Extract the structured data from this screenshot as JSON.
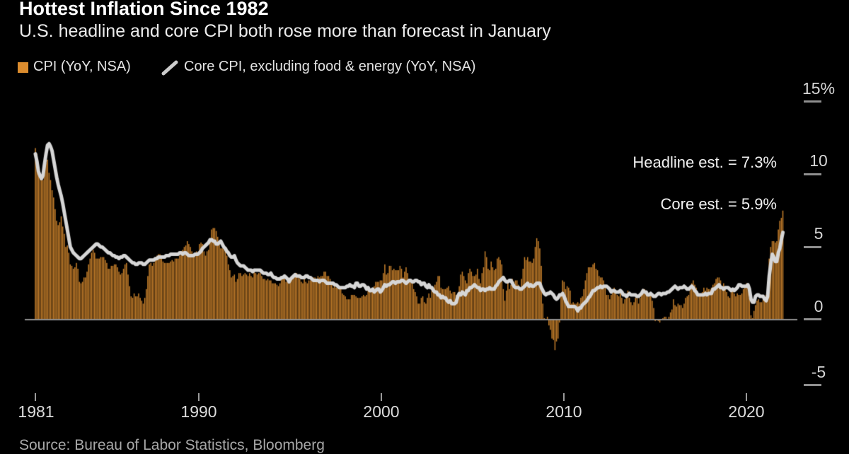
{
  "header": {
    "title": "Hottest Inflation Since 1982",
    "subtitle": "U.S. headline and core CPI both rose more than forecast in January"
  },
  "legend": {
    "cpi_label": "CPI (YoY, NSA)",
    "core_label": "Core CPI, excluding food & energy (YoY, NSA)",
    "cpi_swatch_icon": "orange-square",
    "core_line_icon": "gray-slash"
  },
  "annotations": {
    "headline_estimate": "Headline est. = 7.3%",
    "core_estimate": "Core est. = 5.9%"
  },
  "source_note": "Source: Bureau of Labor Statistics, Bloomberg",
  "colors": {
    "background": "#000000",
    "bar": "#C8802B",
    "legend_swatch": "#DB8C2E",
    "core_line": "#D6D6D6",
    "baseline": "#8F8F8F"
  },
  "chart_data": {
    "type": "bar",
    "subtype": "monthly bars with overlaid line",
    "title": "Hottest Inflation Since 1982",
    "xlabel": "",
    "ylabel": "%",
    "ylim": [
      -5,
      15
    ],
    "x_start": "1981-01",
    "x_end": "2022-01",
    "frequency": "monthly",
    "grid": false,
    "legend_position": "top-left",
    "y_ticks": [
      {
        "label": "15%",
        "value": 15
      },
      {
        "label": "10",
        "value": 10
      },
      {
        "label": "5",
        "value": 5
      },
      {
        "label": "0",
        "value": 0
      },
      {
        "label": "-5",
        "value": -5
      }
    ],
    "x_ticks": [
      {
        "label": "1981",
        "year": 1981
      },
      {
        "label": "1990",
        "year": 1990
      },
      {
        "label": "2000",
        "year": 2000
      },
      {
        "label": "2010",
        "year": 2010
      },
      {
        "label": "2020",
        "year": 2020
      }
    ],
    "series": [
      {
        "name": "CPI (YoY, NSA)",
        "type": "bar",
        "values": [
          11.8,
          11.4,
          10.5,
          10.0,
          9.8,
          9.6,
          10.8,
          10.8,
          11.0,
          10.1,
          9.6,
          8.9,
          8.4,
          7.6,
          6.8,
          6.5,
          6.7,
          7.1,
          6.4,
          5.9,
          5.0,
          5.1,
          4.6,
          3.8,
          3.7,
          3.5,
          3.6,
          3.9,
          3.5,
          2.6,
          2.5,
          2.6,
          2.9,
          2.9,
          3.3,
          3.8,
          4.2,
          4.6,
          4.8,
          4.6,
          4.2,
          4.2,
          4.2,
          4.3,
          4.3,
          4.3,
          4.1,
          3.9,
          3.5,
          3.5,
          3.7,
          3.7,
          3.8,
          3.8,
          3.6,
          3.3,
          3.1,
          3.2,
          3.5,
          3.8,
          3.9,
          3.1,
          2.3,
          1.6,
          1.5,
          1.8,
          1.6,
          1.6,
          1.8,
          1.5,
          1.3,
          1.1,
          1.5,
          2.1,
          3.0,
          3.8,
          3.9,
          3.7,
          3.9,
          4.3,
          4.4,
          4.5,
          4.5,
          4.4,
          4.0,
          3.9,
          3.9,
          3.9,
          3.9,
          4.0,
          4.1,
          4.0,
          4.2,
          4.2,
          4.2,
          4.4,
          4.7,
          4.8,
          5.0,
          5.1,
          5.4,
          5.2,
          5.0,
          4.7,
          4.3,
          4.5,
          4.7,
          4.6,
          5.2,
          5.3,
          5.2,
          4.7,
          4.4,
          4.7,
          4.8,
          5.6,
          6.2,
          6.3,
          6.3,
          6.1,
          5.7,
          5.3,
          4.9,
          4.9,
          5.0,
          4.7,
          4.4,
          3.8,
          3.4,
          2.9,
          3.0,
          3.1,
          2.6,
          2.8,
          3.2,
          3.2,
          3.0,
          3.1,
          3.2,
          3.1,
          3.0,
          3.2,
          3.0,
          2.9,
          3.3,
          3.2,
          3.1,
          3.2,
          3.2,
          3.0,
          2.8,
          2.8,
          2.7,
          2.8,
          2.7,
          2.7,
          2.5,
          2.5,
          2.5,
          2.4,
          2.3,
          2.5,
          2.8,
          2.9,
          3.0,
          2.6,
          2.7,
          2.7,
          2.8,
          2.9,
          2.9,
          3.1,
          3.2,
          3.0,
          2.8,
          2.6,
          2.5,
          2.8,
          2.6,
          2.5,
          2.7,
          2.7,
          2.8,
          2.9,
          2.9,
          2.8,
          3.0,
          2.9,
          3.0,
          3.0,
          3.3,
          3.3,
          3.0,
          3.0,
          2.8,
          2.5,
          2.2,
          2.3,
          2.2,
          2.2,
          2.2,
          2.1,
          1.8,
          1.7,
          1.6,
          1.4,
          1.4,
          1.4,
          1.7,
          1.7,
          1.7,
          1.6,
          1.5,
          1.5,
          1.5,
          1.6,
          1.7,
          1.6,
          1.7,
          2.3,
          2.1,
          2.0,
          2.1,
          2.3,
          2.6,
          2.6,
          2.6,
          2.7,
          2.7,
          3.2,
          3.8,
          3.1,
          3.2,
          3.7,
          3.7,
          3.4,
          3.5,
          3.4,
          3.4,
          3.4,
          3.7,
          3.5,
          2.9,
          3.3,
          3.6,
          3.2,
          2.7,
          2.7,
          2.6,
          2.1,
          1.9,
          1.6,
          1.1,
          1.1,
          1.5,
          1.6,
          1.2,
          1.1,
          1.5,
          1.8,
          1.5,
          2.0,
          2.2,
          2.4,
          2.6,
          3.0,
          3.0,
          2.2,
          2.1,
          2.1,
          2.1,
          2.2,
          2.3,
          2.0,
          1.8,
          1.9,
          1.9,
          1.7,
          1.7,
          2.3,
          3.1,
          3.3,
          3.0,
          2.7,
          2.5,
          3.2,
          3.5,
          3.3,
          3.0,
          3.0,
          3.1,
          3.5,
          2.8,
          2.5,
          3.2,
          3.6,
          4.7,
          4.3,
          3.5,
          3.4,
          4.0,
          3.6,
          3.4,
          3.5,
          4.2,
          4.3,
          4.1,
          3.8,
          2.1,
          1.3,
          2.0,
          2.5,
          2.1,
          2.4,
          2.8,
          2.6,
          2.7,
          2.7,
          2.4,
          2.0,
          2.8,
          3.5,
          4.3,
          4.1,
          4.3,
          4.0,
          4.0,
          3.9,
          4.2,
          5.0,
          5.6,
          5.4,
          4.9,
          3.7,
          1.1,
          0.1,
          0.0,
          0.2,
          -0.4,
          -0.7,
          -1.3,
          -1.4,
          -2.1,
          -1.5,
          -1.3,
          -0.2,
          1.8,
          2.7,
          2.6,
          2.1,
          2.3,
          2.2,
          2.0,
          1.1,
          1.2,
          1.1,
          1.1,
          1.2,
          1.1,
          1.5,
          1.6,
          2.1,
          2.7,
          3.2,
          3.6,
          3.6,
          3.6,
          3.8,
          3.9,
          3.5,
          3.4,
          3.0,
          2.9,
          2.9,
          2.7,
          2.3,
          1.7,
          1.7,
          1.4,
          1.7,
          2.0,
          2.2,
          1.8,
          1.7,
          1.6,
          2.0,
          1.5,
          1.1,
          1.4,
          1.8,
          2.0,
          1.5,
          1.2,
          1.0,
          1.2,
          1.5,
          1.6,
          1.1,
          1.5,
          2.0,
          2.1,
          2.1,
          2.0,
          1.7,
          1.7,
          1.7,
          1.3,
          0.8,
          -0.1,
          0.0,
          -0.1,
          -0.2,
          0.0,
          0.1,
          0.2,
          0.2,
          0.0,
          0.2,
          0.5,
          0.7,
          1.4,
          1.0,
          0.9,
          1.1,
          1.0,
          1.0,
          0.8,
          1.1,
          1.5,
          1.6,
          1.7,
          2.1,
          2.5,
          2.7,
          2.4,
          2.2,
          1.9,
          1.6,
          1.7,
          1.9,
          2.2,
          2.0,
          2.2,
          2.1,
          2.1,
          2.2,
          2.4,
          2.5,
          2.8,
          2.9,
          2.9,
          2.7,
          2.3,
          2.5,
          2.2,
          1.9,
          1.6,
          1.5,
          1.9,
          2.0,
          1.8,
          1.6,
          1.8,
          1.7,
          1.7,
          1.8,
          2.1,
          2.3,
          2.5,
          2.3,
          1.5,
          0.3,
          0.1,
          0.6,
          1.0,
          1.3,
          1.4,
          1.2,
          1.2,
          1.4,
          1.4,
          1.7,
          2.6,
          4.2,
          5.0,
          5.4,
          5.4,
          5.3,
          5.4,
          6.2,
          6.8,
          7.0,
          7.5
        ]
      },
      {
        "name": "Core CPI, excluding food & energy (YoY, NSA)",
        "type": "line",
        "values": [
          11.4,
          10.9,
          10.2,
          9.9,
          9.7,
          9.9,
          10.7,
          11.4,
          12.0,
          12.1,
          11.9,
          11.6,
          11.0,
          10.4,
          9.8,
          9.3,
          8.9,
          8.5,
          8.0,
          7.4,
          6.8,
          6.2,
          5.6,
          5.0,
          4.8,
          4.6,
          4.5,
          4.4,
          4.3,
          4.2,
          4.2,
          4.3,
          4.4,
          4.5,
          4.6,
          4.7,
          4.8,
          4.9,
          5.0,
          5.1,
          5.2,
          5.2,
          5.1,
          5.0,
          5.0,
          4.9,
          4.8,
          4.7,
          4.6,
          4.6,
          4.5,
          4.4,
          4.4,
          4.3,
          4.3,
          4.2,
          4.3,
          4.3,
          4.4,
          4.4,
          4.3,
          4.2,
          4.1,
          4.0,
          3.9,
          3.9,
          3.8,
          3.8,
          3.9,
          3.9,
          3.9,
          3.8,
          3.8,
          3.9,
          4.0,
          4.1,
          4.1,
          4.1,
          4.1,
          4.2,
          4.2,
          4.3,
          4.3,
          4.3,
          4.3,
          4.3,
          4.4,
          4.4,
          4.4,
          4.5,
          4.5,
          4.5,
          4.5,
          4.5,
          4.5,
          4.6,
          4.6,
          4.5,
          4.6,
          4.6,
          4.5,
          4.4,
          4.4,
          4.4,
          4.4,
          4.5,
          4.5,
          4.5,
          4.6,
          4.7,
          4.9,
          5.0,
          5.1,
          5.2,
          5.3,
          5.5,
          5.5,
          5.4,
          5.4,
          5.2,
          5.2,
          5.3,
          5.4,
          5.2,
          5.0,
          4.9,
          4.7,
          4.6,
          4.4,
          4.3,
          4.3,
          4.4,
          4.1,
          3.9,
          3.8,
          3.7,
          3.7,
          3.7,
          3.6,
          3.5,
          3.4,
          3.4,
          3.4,
          3.3,
          3.4,
          3.4,
          3.4,
          3.4,
          3.4,
          3.3,
          3.2,
          3.2,
          3.2,
          3.1,
          3.1,
          3.2,
          3.0,
          2.9,
          2.9,
          2.8,
          2.8,
          2.8,
          2.9,
          2.9,
          3.0,
          2.9,
          2.8,
          2.6,
          2.8,
          2.9,
          3.0,
          3.1,
          3.0,
          3.0,
          3.0,
          2.9,
          2.9,
          2.9,
          3.0,
          3.0,
          2.9,
          2.9,
          2.8,
          2.7,
          2.7,
          2.7,
          2.7,
          2.6,
          2.7,
          2.7,
          2.7,
          2.6,
          2.5,
          2.5,
          2.5,
          2.5,
          2.5,
          2.4,
          2.4,
          2.3,
          2.2,
          2.2,
          2.2,
          2.2,
          2.2,
          2.3,
          2.3,
          2.4,
          2.3,
          2.3,
          2.2,
          2.5,
          2.5,
          2.3,
          2.3,
          2.4,
          2.4,
          2.3,
          2.1,
          2.2,
          2.0,
          2.0,
          2.1,
          1.9,
          2.0,
          2.1,
          2.1,
          1.9,
          2.0,
          2.2,
          2.4,
          2.3,
          2.4,
          2.4,
          2.5,
          2.6,
          2.6,
          2.5,
          2.6,
          2.6,
          2.6,
          2.7,
          2.7,
          2.6,
          2.5,
          2.6,
          2.7,
          2.7,
          2.6,
          2.6,
          2.7,
          2.7,
          2.6,
          2.6,
          2.4,
          2.5,
          2.5,
          2.3,
          2.2,
          2.4,
          2.2,
          2.2,
          2.0,
          1.9,
          1.9,
          1.7,
          1.7,
          1.5,
          1.6,
          1.5,
          1.5,
          1.3,
          1.2,
          1.3,
          1.1,
          1.1,
          1.1,
          1.2,
          1.6,
          1.8,
          1.7,
          1.9,
          1.8,
          1.7,
          2.0,
          2.0,
          2.2,
          2.2,
          2.3,
          2.4,
          2.3,
          2.2,
          2.2,
          2.0,
          2.1,
          2.1,
          2.0,
          2.1,
          2.1,
          2.2,
          2.1,
          2.1,
          2.1,
          2.3,
          2.4,
          2.6,
          2.7,
          2.8,
          2.9,
          2.7,
          2.6,
          2.6,
          2.7,
          2.7,
          2.5,
          2.3,
          2.2,
          2.2,
          2.2,
          2.1,
          2.1,
          2.2,
          2.3,
          2.4,
          2.5,
          2.3,
          2.4,
          2.3,
          2.3,
          2.4,
          2.5,
          2.5,
          2.5,
          2.2,
          2.0,
          1.8,
          1.7,
          1.8,
          1.8,
          1.9,
          1.8,
          1.7,
          1.5,
          1.4,
          1.5,
          1.7,
          1.7,
          1.8,
          1.6,
          1.3,
          1.1,
          0.9,
          0.9,
          0.9,
          0.9,
          0.9,
          0.8,
          0.6,
          0.8,
          0.8,
          1.0,
          1.1,
          1.2,
          1.3,
          1.5,
          1.6,
          1.8,
          2.0,
          2.0,
          2.1,
          2.2,
          2.2,
          2.3,
          2.2,
          2.3,
          2.3,
          2.3,
          2.2,
          2.1,
          1.9,
          2.0,
          2.0,
          1.9,
          1.9,
          1.9,
          2.0,
          1.9,
          1.7,
          1.7,
          1.6,
          1.7,
          1.8,
          1.7,
          1.7,
          1.7,
          1.7,
          1.6,
          1.6,
          1.7,
          1.8,
          2.0,
          1.9,
          1.9,
          1.7,
          1.7,
          1.8,
          1.7,
          1.6,
          1.6,
          1.7,
          1.8,
          1.8,
          1.7,
          1.8,
          1.8,
          1.8,
          1.9,
          1.9,
          2.0,
          2.1,
          2.2,
          2.3,
          2.2,
          2.1,
          2.2,
          2.2,
          2.2,
          2.3,
          2.2,
          2.1,
          2.1,
          2.2,
          2.3,
          2.2,
          2.0,
          1.9,
          1.7,
          1.7,
          1.7,
          1.7,
          1.7,
          1.8,
          1.7,
          1.8,
          1.8,
          1.8,
          2.1,
          2.1,
          2.2,
          2.3,
          2.4,
          2.2,
          2.2,
          2.1,
          2.2,
          2.2,
          2.2,
          2.1,
          2.0,
          2.1,
          2.0,
          2.1,
          2.2,
          2.4,
          2.4,
          2.3,
          2.3,
          2.3,
          2.3,
          2.4,
          2.1,
          1.4,
          1.2,
          1.2,
          1.6,
          1.7,
          1.7,
          1.6,
          1.6,
          1.6,
          1.4,
          1.3,
          1.6,
          3.0,
          3.8,
          4.5,
          4.3,
          4.0,
          4.0,
          4.6,
          4.9,
          5.5,
          6.0
        ]
      }
    ]
  }
}
